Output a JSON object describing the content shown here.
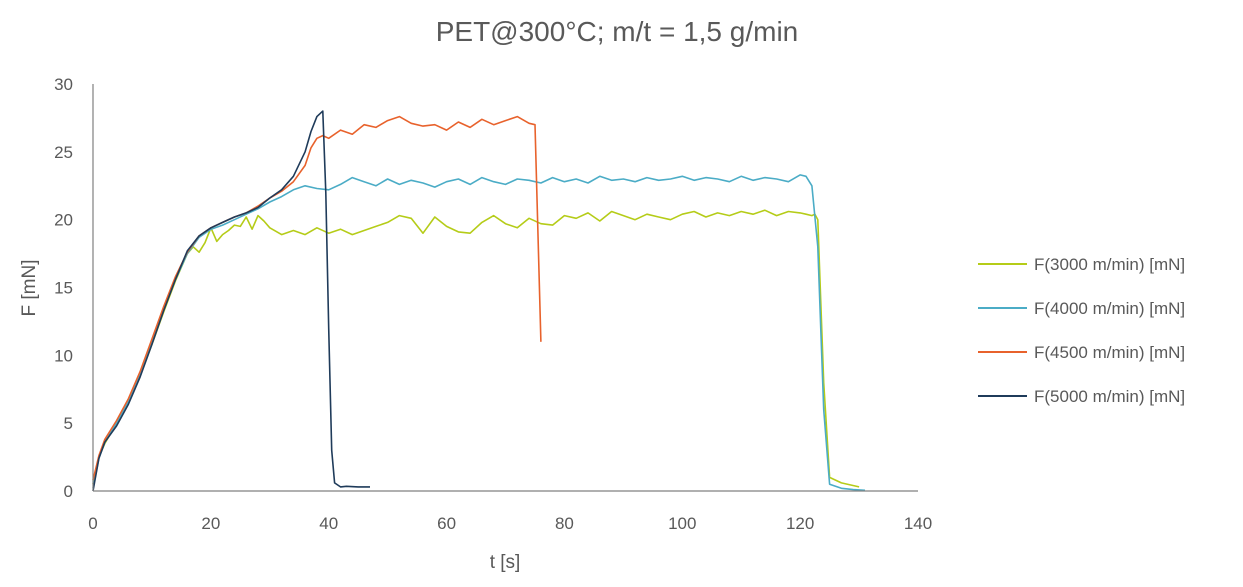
{
  "chart_data": {
    "type": "line",
    "title": "PET@300°C; m/t = 1,5 g/min",
    "xlabel": "t [s]",
    "ylabel": "F [mN]",
    "xlim": [
      0,
      140
    ],
    "ylim": [
      0,
      30
    ],
    "xticks": [
      0,
      20,
      40,
      60,
      80,
      100,
      120,
      140
    ],
    "yticks": [
      0,
      5,
      10,
      15,
      20,
      25,
      30
    ],
    "grid": false,
    "legend_position": "right",
    "series": [
      {
        "name": "F(3000 m/min) [mN]",
        "color": "#b5cc18",
        "x": [
          0,
          1,
          2,
          4,
          6,
          8,
          10,
          12,
          14,
          16,
          17,
          18,
          19,
          20,
          21,
          22,
          23,
          24,
          25,
          26,
          27,
          28,
          29,
          30,
          32,
          34,
          36,
          38,
          40,
          42,
          44,
          46,
          48,
          50,
          52,
          54,
          56,
          58,
          60,
          62,
          64,
          66,
          68,
          70,
          72,
          74,
          76,
          78,
          80,
          82,
          84,
          86,
          88,
          90,
          92,
          94,
          96,
          98,
          100,
          102,
          104,
          106,
          108,
          110,
          112,
          114,
          116,
          118,
          120,
          121,
          122,
          122.5,
          123,
          124,
          125,
          127,
          130
        ],
        "values": [
          0.5,
          2.5,
          3.5,
          5.0,
          6.5,
          8.5,
          10.8,
          13.2,
          15.5,
          17.5,
          18.0,
          17.6,
          18.3,
          19.4,
          18.4,
          18.9,
          19.2,
          19.6,
          19.5,
          20.2,
          19.3,
          20.3,
          19.9,
          19.4,
          18.9,
          19.2,
          18.9,
          19.4,
          19.0,
          19.3,
          18.9,
          19.2,
          19.5,
          19.8,
          20.3,
          20.1,
          19.0,
          20.2,
          19.5,
          19.1,
          19.0,
          19.8,
          20.3,
          19.7,
          19.4,
          20.1,
          19.7,
          19.6,
          20.3,
          20.1,
          20.5,
          19.9,
          20.6,
          20.3,
          20.0,
          20.4,
          20.2,
          20.0,
          20.4,
          20.6,
          20.2,
          20.5,
          20.3,
          20.6,
          20.4,
          20.7,
          20.3,
          20.6,
          20.5,
          20.4,
          20.3,
          20.4,
          20.0,
          8.0,
          1.0,
          0.6,
          0.3
        ]
      },
      {
        "name": "F(4000 m/min) [mN]",
        "color": "#4bacc6",
        "x": [
          0,
          1,
          2,
          4,
          6,
          8,
          10,
          12,
          14,
          16,
          18,
          20,
          22,
          24,
          26,
          28,
          30,
          32,
          34,
          36,
          38,
          40,
          42,
          44,
          46,
          48,
          50,
          52,
          54,
          56,
          58,
          60,
          62,
          64,
          66,
          68,
          70,
          72,
          74,
          76,
          78,
          80,
          82,
          84,
          86,
          88,
          90,
          92,
          94,
          96,
          98,
          100,
          102,
          104,
          106,
          108,
          110,
          112,
          114,
          116,
          118,
          120,
          121,
          122,
          123,
          124,
          125,
          127,
          129,
          131
        ],
        "values": [
          0.2,
          2.4,
          3.6,
          5.0,
          6.6,
          8.6,
          11.0,
          13.4,
          15.6,
          17.5,
          18.7,
          19.3,
          19.6,
          20.0,
          20.4,
          20.8,
          21.3,
          21.7,
          22.2,
          22.5,
          22.3,
          22.2,
          22.6,
          23.1,
          22.8,
          22.5,
          23.0,
          22.6,
          22.9,
          22.7,
          22.4,
          22.8,
          23.0,
          22.6,
          23.1,
          22.8,
          22.6,
          23.0,
          22.9,
          22.7,
          23.1,
          22.8,
          23.0,
          22.7,
          23.2,
          22.9,
          23.0,
          22.8,
          23.1,
          22.9,
          23.0,
          23.2,
          22.9,
          23.1,
          23.0,
          22.8,
          23.2,
          22.9,
          23.1,
          23.0,
          22.8,
          23.3,
          23.2,
          22.5,
          18.0,
          6.0,
          0.5,
          0.2,
          0.1,
          0.05
        ]
      },
      {
        "name": "F(4500 m/min) [mN]",
        "color": "#e8622c",
        "x": [
          0,
          1,
          2,
          4,
          6,
          8,
          10,
          12,
          14,
          16,
          18,
          20,
          22,
          24,
          26,
          28,
          30,
          32,
          34,
          36,
          37,
          38,
          39,
          40,
          42,
          44,
          46,
          48,
          50,
          52,
          54,
          56,
          58,
          60,
          62,
          64,
          66,
          68,
          70,
          72,
          74,
          75,
          76
        ],
        "values": [
          0.8,
          2.6,
          3.8,
          5.2,
          6.8,
          8.8,
          11.2,
          13.6,
          15.8,
          17.6,
          18.8,
          19.4,
          19.8,
          20.2,
          20.5,
          21.0,
          21.6,
          22.1,
          22.8,
          24.0,
          25.3,
          26.0,
          26.2,
          26.0,
          26.6,
          26.3,
          27.0,
          26.8,
          27.3,
          27.6,
          27.1,
          26.9,
          27.0,
          26.6,
          27.2,
          26.8,
          27.4,
          27.0,
          27.3,
          27.6,
          27.1,
          27.0,
          11.0
        ]
      },
      {
        "name": "F(5000 m/min) [mN]",
        "color": "#1f3b5a",
        "x": [
          0,
          1,
          2,
          4,
          6,
          8,
          10,
          12,
          14,
          16,
          18,
          20,
          22,
          24,
          26,
          28,
          30,
          32,
          34,
          36,
          37,
          38,
          39,
          39.5,
          40,
          40.5,
          41,
          42,
          43,
          45,
          47
        ],
        "values": [
          0.0,
          2.4,
          3.6,
          4.8,
          6.4,
          8.4,
          10.8,
          13.3,
          15.6,
          17.7,
          18.8,
          19.4,
          19.8,
          20.2,
          20.5,
          20.9,
          21.6,
          22.2,
          23.2,
          25.0,
          26.5,
          27.6,
          28.0,
          22.0,
          12.0,
          3.0,
          0.6,
          0.3,
          0.35,
          0.3,
          0.3
        ]
      }
    ]
  }
}
